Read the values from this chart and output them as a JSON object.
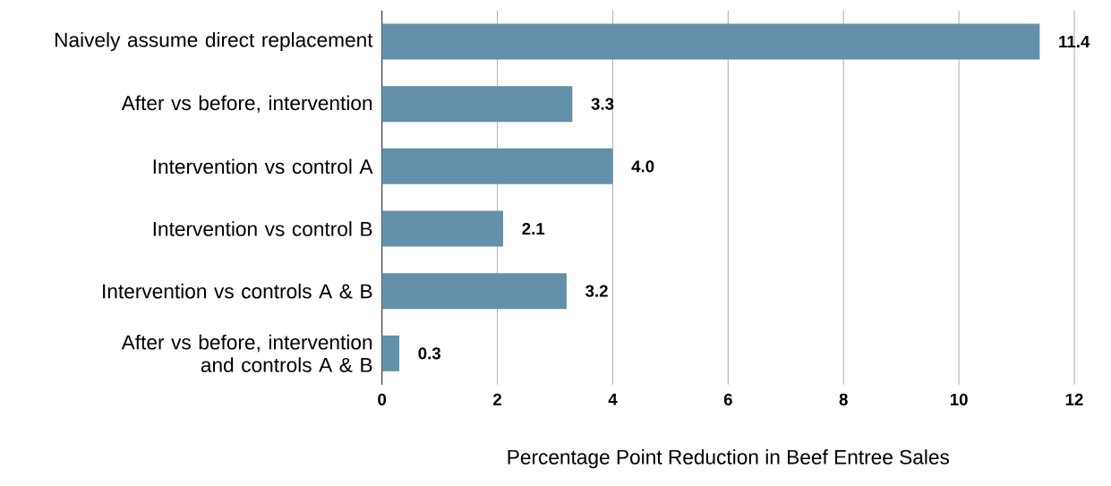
{
  "chart_data": {
    "type": "bar",
    "orientation": "horizontal",
    "categories": [
      "Naively assume direct replacement",
      "After vs before, intervention",
      "Intervention vs control A",
      "Intervention vs control B",
      "Intervention vs controls A & B",
      "After vs before, intervention and controls A & B"
    ],
    "values": [
      11.4,
      3.3,
      4.0,
      2.1,
      3.2,
      0.3
    ],
    "value_labels": [
      "11.4",
      "3.3",
      "4.0",
      "2.1",
      "3.2",
      "0.3"
    ],
    "color": "#6490aa",
    "xlim": [
      0,
      12
    ],
    "xticks": [
      0,
      2,
      4,
      6,
      8,
      10,
      12
    ],
    "grid": "x",
    "xlabel": "Percentage Point Reduction in Beef Entree Sales"
  }
}
